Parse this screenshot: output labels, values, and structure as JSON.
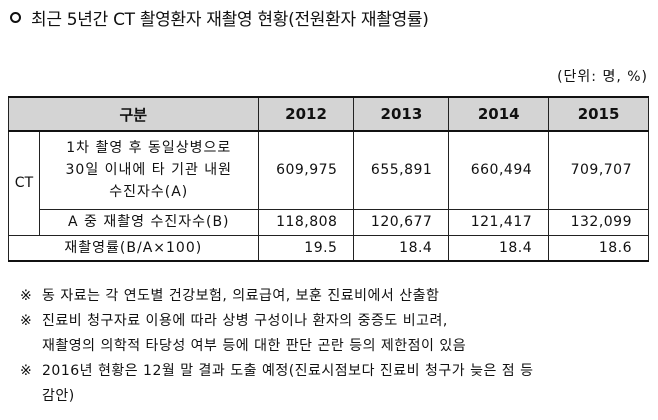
{
  "heading": "최근 5년간 CT 촬영환자 재촬영 현황(전원환자 재촬영률)",
  "unit": "(단위: 명, %)",
  "table": {
    "header": {
      "category": "구분",
      "years": [
        "2012",
        "2013",
        "2014",
        "2015"
      ]
    },
    "group_label": "CT",
    "rows": [
      {
        "label_lines": [
          "1차 촬영 후 동일상병으로",
          "30일 이내에 타 기관 내원",
          "수진자수(A)"
        ],
        "values": [
          "609,975",
          "655,891",
          "660,494",
          "709,707"
        ]
      },
      {
        "label_lines": [
          "A 중 재촬영 수진자수(B)"
        ],
        "values": [
          "118,808",
          "120,677",
          "121,417",
          "132,099"
        ]
      },
      {
        "label_lines": [
          "재촬영률(B/A×100)"
        ],
        "values": [
          "19.5",
          "18.4",
          "18.4",
          "18.6"
        ]
      }
    ]
  },
  "notes": [
    {
      "mark": "※",
      "lines": [
        "동 자료는 각 연도별 건강보험, 의료급여, 보훈 진료비에서 산출함"
      ]
    },
    {
      "mark": "※",
      "lines": [
        "진료비 청구자료 이용에 따라 상병 구성이나 환자의 중증도 비고려,",
        "재촬영의 의학적 타당성 여부 등에 대한 판단 곤란 등의 제한점이 있음"
      ]
    },
    {
      "mark": "※",
      "lines": [
        "2016년 현황은 12월 말 결과 도출 예정(진료시점보다 진료비 청구가 늦은 점 등",
        "감안)"
      ]
    }
  ]
}
